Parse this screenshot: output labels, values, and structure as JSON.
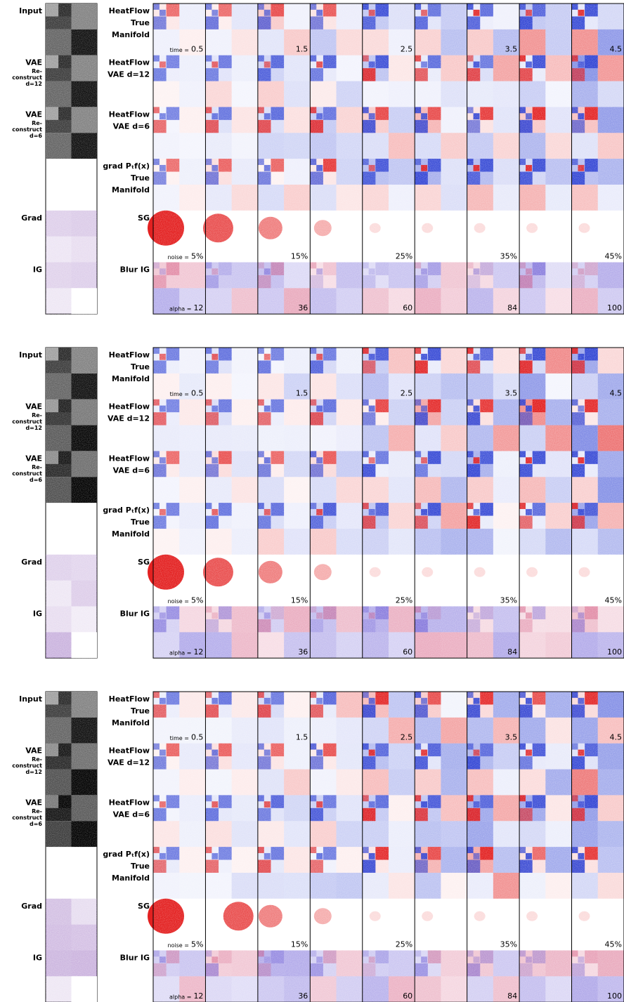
{
  "panels": [
    {
      "left_labels": [
        [
          "Input"
        ],
        [
          "VAE",
          "Re-",
          "construct",
          "d=12"
        ],
        [
          "VAE",
          "Re-",
          "construct",
          "d=6"
        ],
        [
          "Grad"
        ],
        [
          "IG"
        ]
      ],
      "row_labels": [
        [
          "HeatFlow",
          "True",
          "Manifold"
        ],
        [
          "HeatFlow",
          "VAE d=12"
        ],
        [
          "HeatFlow",
          "VAE d=6"
        ],
        [
          "grad Pₜf(x)",
          "True",
          "Manifold"
        ],
        [
          "SG"
        ],
        [
          "Blur IG"
        ]
      ],
      "time_prefix": "time =",
      "time_labels": [
        "0.5",
        "1.5",
        "2.5",
        "3.5",
        "4.5"
      ],
      "noise_prefix": "noise =",
      "noise_labels": [
        "5%",
        "15%",
        "25%",
        "35%",
        "45%"
      ],
      "alpha_prefix": "alpha =",
      "alpha_labels": [
        "12",
        "36",
        "60",
        "84",
        "100"
      ]
    },
    {
      "left_labels": [
        [
          "Input"
        ],
        [
          "VAE",
          "Re-",
          "construct",
          "d=12"
        ],
        [
          "VAE",
          "Re-",
          "construct",
          "d=6"
        ],
        [
          "Grad"
        ],
        [
          "IG"
        ]
      ],
      "row_labels": [
        [
          "HeatFlow",
          "True",
          "Manifold"
        ],
        [
          "HeatFlow",
          "VAE d=12"
        ],
        [
          "HeatFlow",
          "VAE d=6"
        ],
        [
          "grad Pₜf(x)",
          "True",
          "Manifold"
        ],
        [
          "SG"
        ],
        [
          "Blur IG"
        ]
      ],
      "time_prefix": "time =",
      "time_labels": [
        "0.5",
        "1.5",
        "2.5",
        "3.5",
        "4.5"
      ],
      "noise_prefix": "noise =",
      "noise_labels": [
        "5%",
        "15%",
        "25%",
        "35%",
        "45%"
      ],
      "alpha_prefix": "alpha =",
      "alpha_labels": [
        "12",
        "36",
        "60",
        "84",
        "100"
      ]
    },
    {
      "left_labels": [
        [
          "Input"
        ],
        [
          "VAE",
          "Re-",
          "construct",
          "d=12"
        ],
        [
          "VAE",
          "Re-",
          "construct",
          "d=6"
        ],
        [
          "Grad"
        ],
        [
          "IG"
        ]
      ],
      "row_labels": [
        [
          "HeatFlow",
          "True",
          "Manifold"
        ],
        [
          "HeatFlow",
          "VAE d=12"
        ],
        [
          "HeatFlow",
          "VAE d=6"
        ],
        [
          "grad Pₜf(x)",
          "True",
          "Manifold"
        ],
        [
          "SG"
        ],
        [
          "Blur IG"
        ]
      ],
      "time_prefix": "time =",
      "time_labels": [
        "0.5",
        "1.5",
        "2.5",
        "3.5",
        "4.5"
      ],
      "noise_prefix": "noise =",
      "noise_labels": [
        "5%",
        "15%",
        "25%",
        "35%",
        "45%"
      ],
      "alpha_prefix": "alpha =",
      "alpha_labels": [
        "12",
        "36",
        "60",
        "84",
        "100"
      ]
    }
  ]
}
